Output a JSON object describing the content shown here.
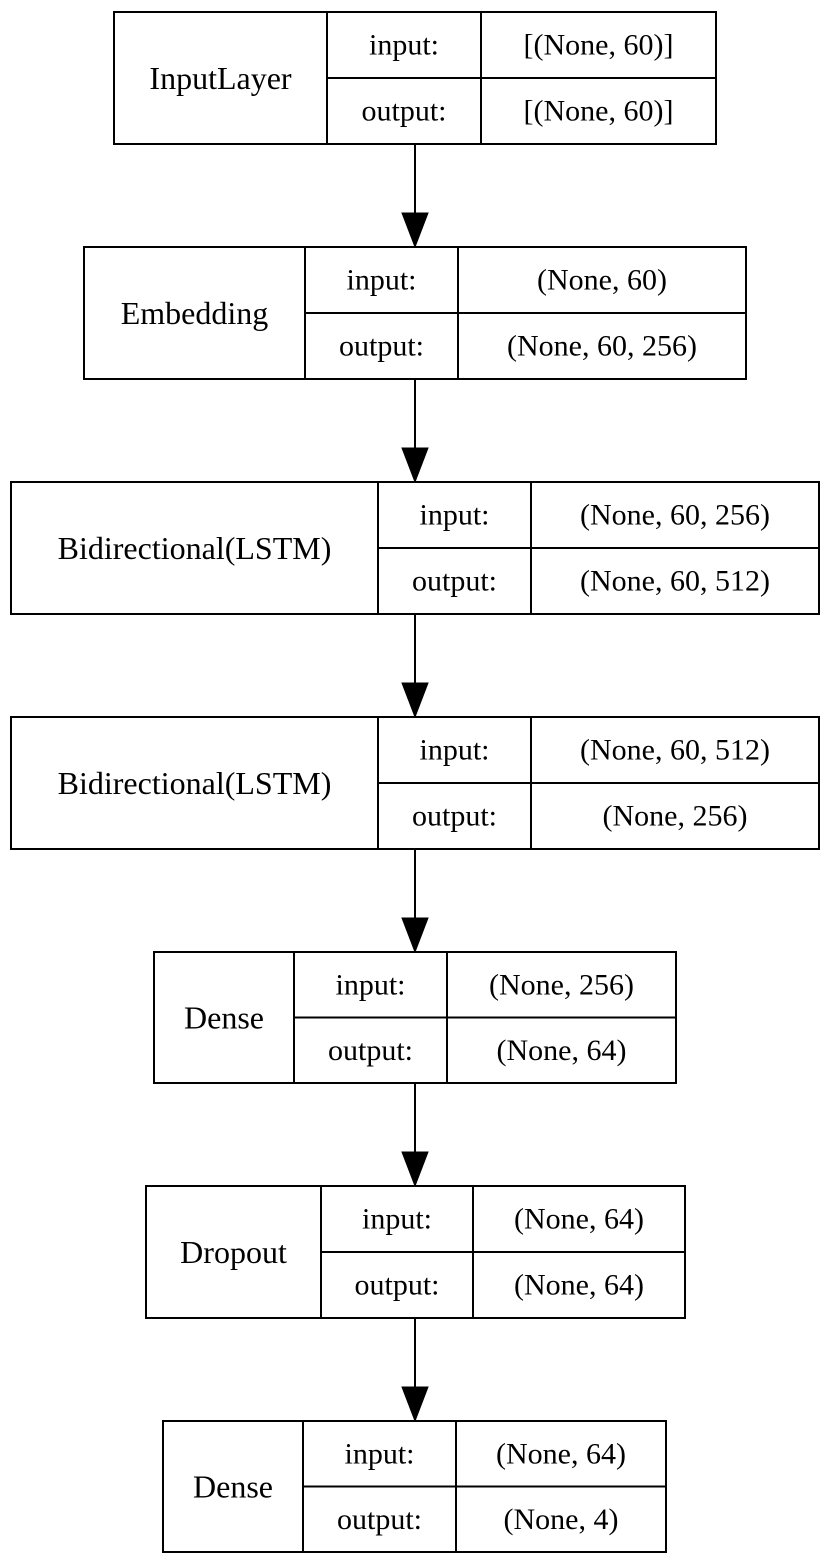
{
  "layers": [
    {
      "name": "InputLayer",
      "input_label": "input:",
      "output_label": "output:",
      "input_shape": "[(None, 60)]",
      "output_shape": "[(None, 60)]"
    },
    {
      "name": "Embedding",
      "input_label": "input:",
      "output_label": "output:",
      "input_shape": "(None, 60)",
      "output_shape": "(None, 60, 256)"
    },
    {
      "name": "Bidirectional(LSTM)",
      "input_label": "input:",
      "output_label": "output:",
      "input_shape": "(None, 60, 256)",
      "output_shape": "(None, 60, 512)"
    },
    {
      "name": "Bidirectional(LSTM)",
      "input_label": "input:",
      "output_label": "output:",
      "input_shape": "(None, 60, 512)",
      "output_shape": "(None, 256)"
    },
    {
      "name": "Dense",
      "input_label": "input:",
      "output_label": "output:",
      "input_shape": "(None, 256)",
      "output_shape": "(None, 64)"
    },
    {
      "name": "Dropout",
      "input_label": "input:",
      "output_label": "output:",
      "input_shape": "(None, 64)",
      "output_shape": "(None, 64)"
    },
    {
      "name": "Dense",
      "input_label": "input:",
      "output_label": "output:",
      "input_shape": "(None, 64)",
      "output_shape": "(None, 4)"
    }
  ],
  "edges": [
    {
      "from": 0,
      "to": 1
    },
    {
      "from": 1,
      "to": 2
    },
    {
      "from": 2,
      "to": 3
    },
    {
      "from": 3,
      "to": 4
    },
    {
      "from": 4,
      "to": 5
    },
    {
      "from": 5,
      "to": 6
    }
  ]
}
